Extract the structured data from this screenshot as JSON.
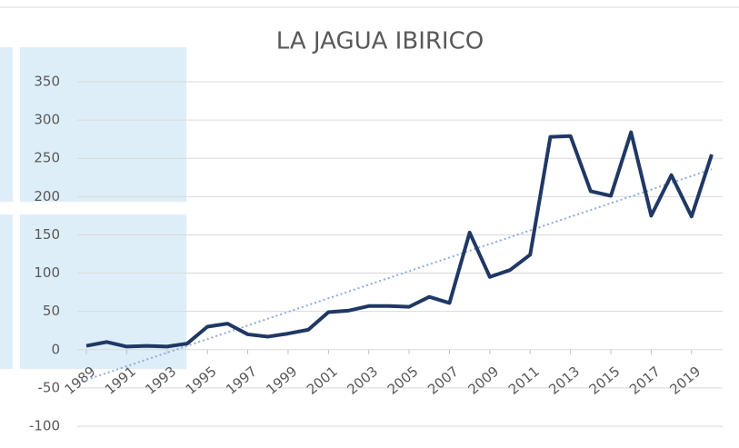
{
  "chart_data": {
    "type": "line",
    "title": "LA JAGUA IBIRICO",
    "x": [
      1989,
      1990,
      1991,
      1992,
      1993,
      1994,
      1995,
      1996,
      1997,
      1998,
      1999,
      2000,
      2001,
      2002,
      2003,
      2004,
      2005,
      2006,
      2007,
      2008,
      2009,
      2010,
      2011,
      2012,
      2013,
      2014,
      2015,
      2016,
      2017,
      2018,
      2019,
      2020
    ],
    "series": [
      {
        "name": "LA JAGUA IBIRICO",
        "color": "#1f3864",
        "values": [
          5,
          10,
          4,
          5,
          4,
          8,
          30,
          34,
          20,
          17,
          21,
          26,
          49,
          51,
          57,
          57,
          56,
          69,
          61,
          153,
          95,
          104,
          124,
          278,
          279,
          207,
          201,
          284,
          175,
          228,
          174,
          255
        ]
      }
    ],
    "trendline": true,
    "trend_color": "#8faadc",
    "xlim": [
      1989,
      2020
    ],
    "xticks": [
      1989,
      1991,
      1993,
      1995,
      1997,
      1999,
      2001,
      2003,
      2005,
      2007,
      2009,
      2011,
      2013,
      2015,
      2017,
      2019
    ],
    "ylim": [
      -100,
      350
    ],
    "yticks": [
      -100,
      -50,
      0,
      50,
      100,
      150,
      200,
      250,
      300,
      350
    ],
    "grid": true
  }
}
